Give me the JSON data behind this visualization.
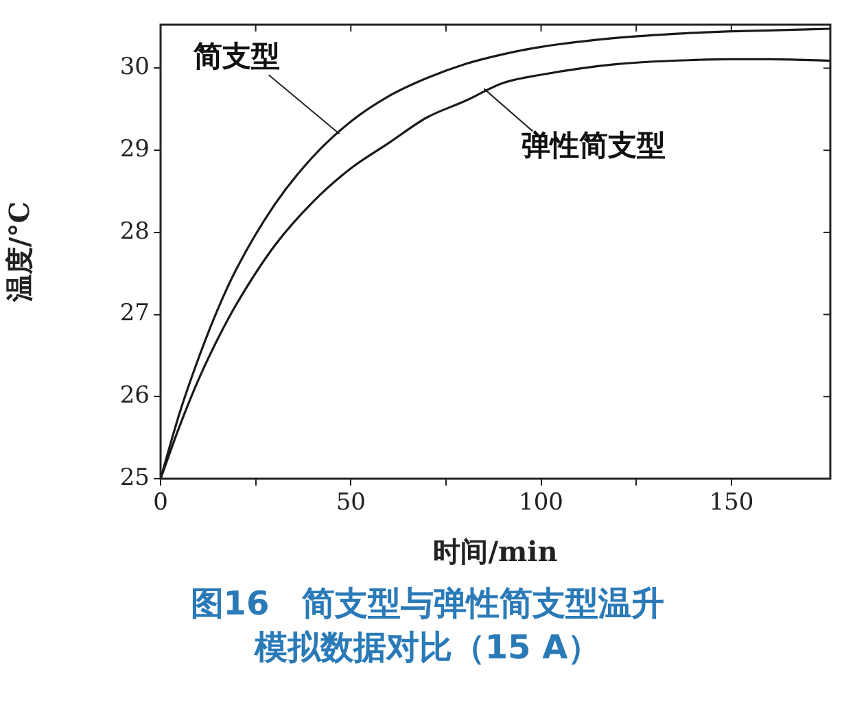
{
  "chart_data": {
    "type": "line",
    "title": "图16　简支型与弹性简支型温升模拟数据对比（15 A）",
    "xlabel": "时间/min",
    "ylabel": "温度/°C",
    "x": [
      0,
      5,
      10,
      15,
      20,
      30,
      40,
      50,
      60,
      70,
      80,
      90,
      100,
      120,
      140,
      150,
      160,
      176
    ],
    "series": [
      {
        "color": "#1a1a1a",
        "values": [
          25,
          25.8,
          26.47,
          27.06,
          27.56,
          28.34,
          28.92,
          29.35,
          29.66,
          29.88,
          30.05,
          30.17,
          30.26,
          30.37,
          30.43,
          30.45,
          30.46,
          30.48
        ]
      },
      {
        "color": "#1a1a1a",
        "values": [
          25,
          25.64,
          26.21,
          26.7,
          27.13,
          27.84,
          28.37,
          28.78,
          29.09,
          29.4,
          29.6,
          29.82,
          29.92,
          30.05,
          30.1,
          30.11,
          30.11,
          30.09
        ]
      }
    ],
    "annotations": [
      {
        "text": "简支型",
        "x": 47,
        "y": 29.2
      },
      {
        "text": "弹性简支型",
        "x": 85,
        "y": 29.75
      }
    ],
    "xlim": [
      0,
      176
    ],
    "xticks": [
      0,
      {
        "value": 25,
        "label": null
      },
      50,
      {
        "value": 75,
        "label": null
      },
      100,
      {
        "value": 125,
        "label": null
      },
      150
    ],
    "ylim": [
      25,
      30.53
    ],
    "yticks": [
      25,
      26,
      27,
      28,
      29,
      30
    ],
    "grid": false,
    "legend": false,
    "marker": "none",
    "line_style": "solid"
  }
}
